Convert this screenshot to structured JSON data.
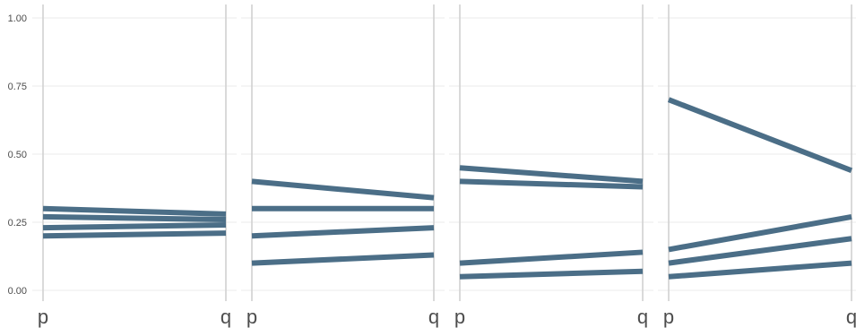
{
  "chart_data": {
    "type": "line",
    "layout": "small-multiples",
    "x_categories": [
      "p",
      "q"
    ],
    "ylim": [
      0,
      1
    ],
    "y_ticks": [
      0,
      0.25,
      0.5,
      0.75,
      1
    ],
    "y_tick_labels": [
      "0.00",
      "0.25",
      "0.50",
      "0.75",
      "1.00"
    ],
    "grid": true,
    "line_color": "#4b6e87",
    "axis_line_color": "#d0d0d0",
    "grid_color": "#ebebeb",
    "panels": [
      {
        "lines": [
          {
            "values": [
              0.3,
              0.28
            ]
          },
          {
            "values": [
              0.27,
              0.26
            ]
          },
          {
            "values": [
              0.23,
              0.24
            ]
          },
          {
            "values": [
              0.2,
              0.21
            ]
          }
        ]
      },
      {
        "lines": [
          {
            "values": [
              0.4,
              0.34
            ]
          },
          {
            "values": [
              0.3,
              0.3
            ]
          },
          {
            "values": [
              0.2,
              0.23
            ]
          },
          {
            "values": [
              0.1,
              0.13
            ]
          }
        ]
      },
      {
        "lines": [
          {
            "values": [
              0.45,
              0.4
            ]
          },
          {
            "values": [
              0.4,
              0.38
            ]
          },
          {
            "values": [
              0.1,
              0.14
            ]
          },
          {
            "values": [
              0.05,
              0.07
            ]
          }
        ]
      },
      {
        "lines": [
          {
            "values": [
              0.7,
              0.44
            ]
          },
          {
            "values": [
              0.15,
              0.27
            ]
          },
          {
            "values": [
              0.1,
              0.19
            ]
          },
          {
            "values": [
              0.05,
              0.1
            ]
          }
        ]
      }
    ]
  }
}
